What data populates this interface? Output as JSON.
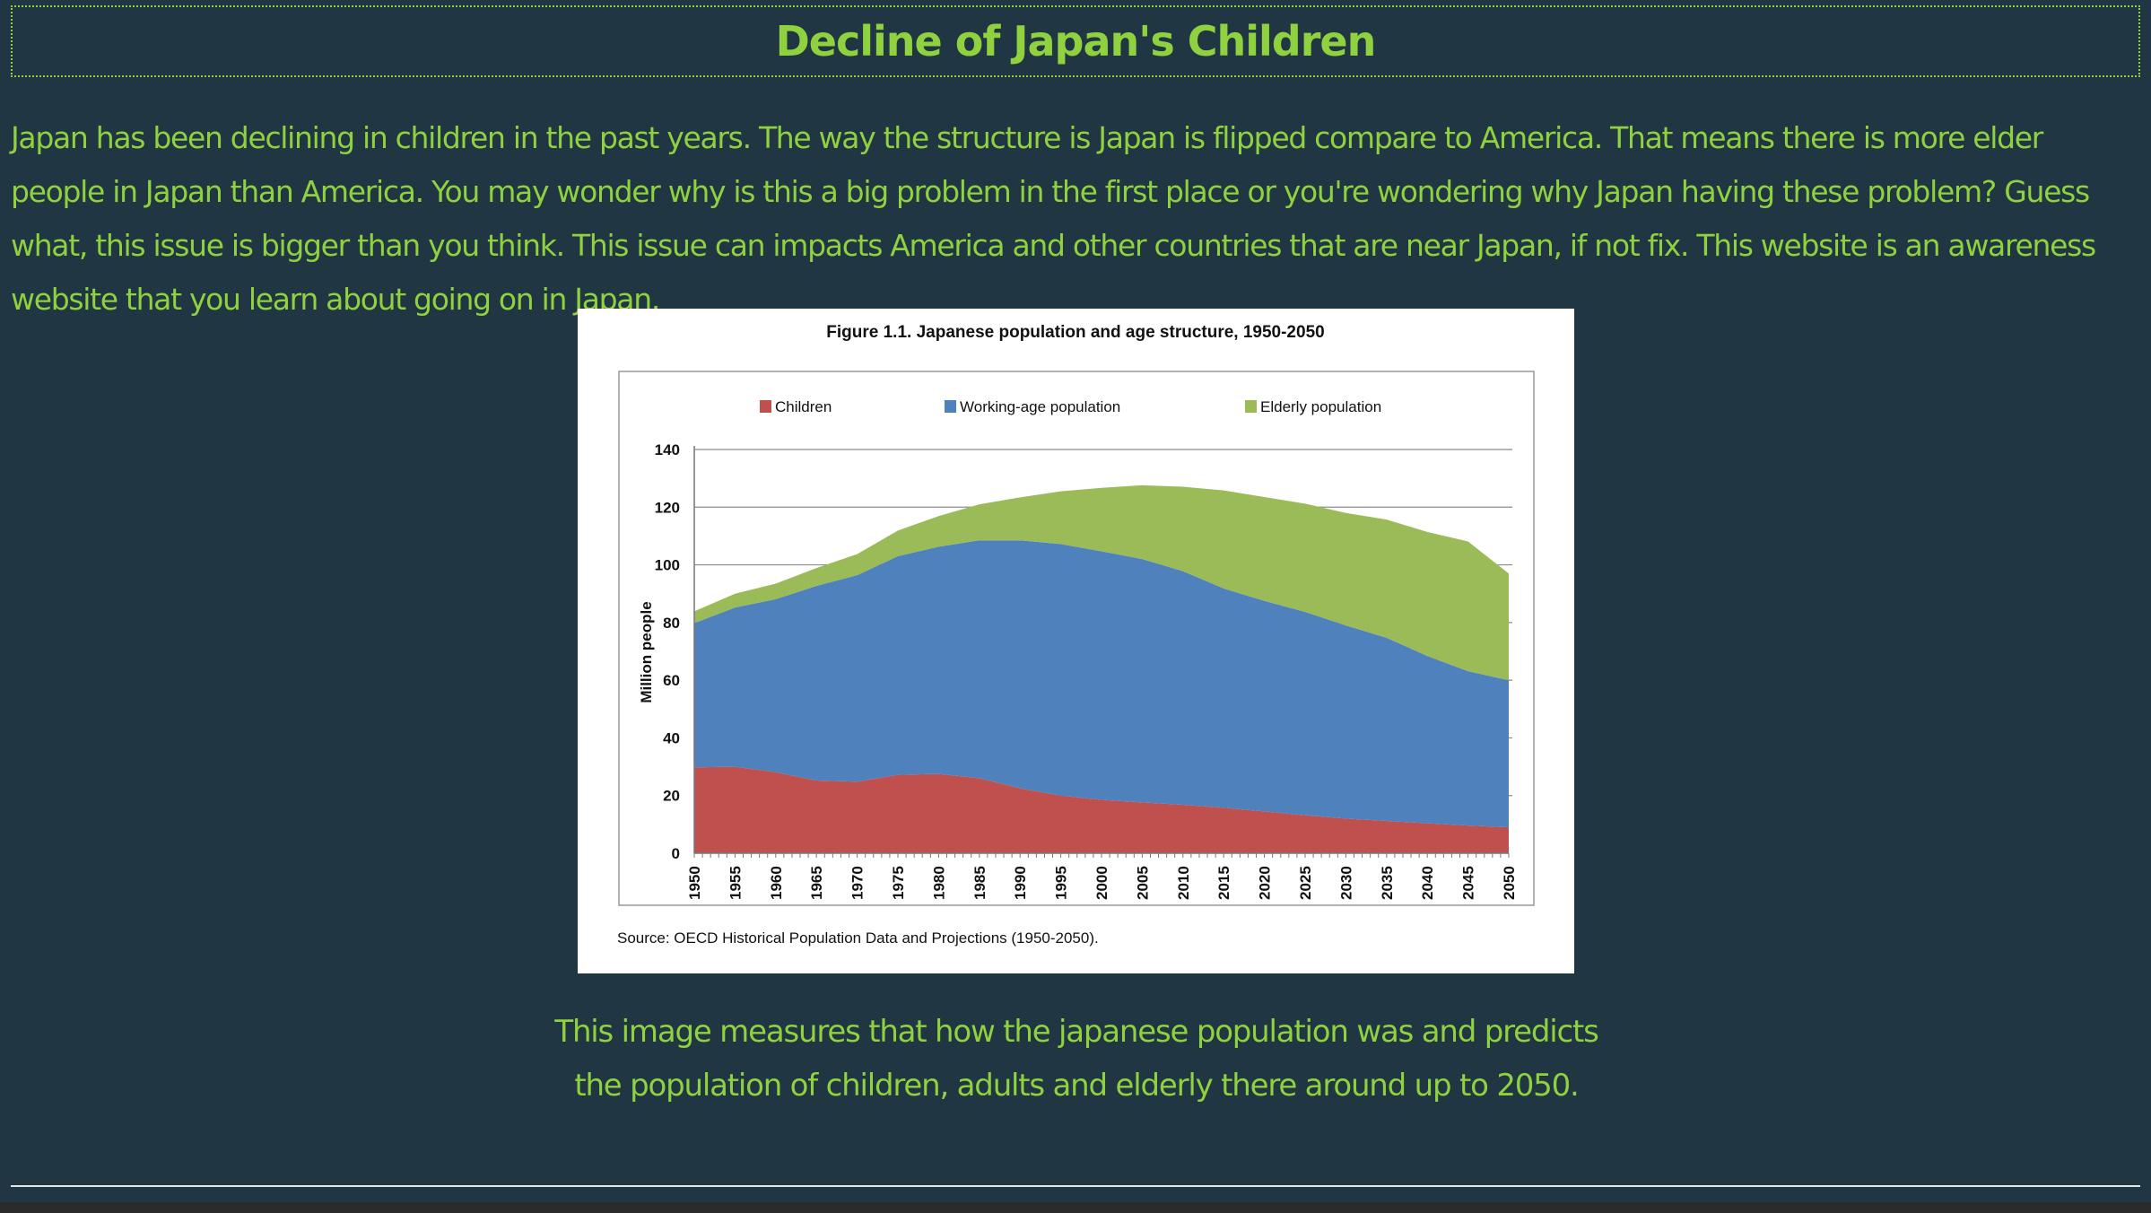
{
  "page": {
    "title": "Decline of Japan's Children",
    "intro": "Japan has been declining in children in the past years. The way the structure is Japan is flipped compare to America. That means there is more elder people in Japan than America. You may wonder why is this a big problem in the first place or you're wondering why Japan having these problem? Guess what, this issue is bigger than you think. This issue can impacts America and other countries that are near Japan, if not fix. This website is an awareness website that you learn about going on in Japan.",
    "caption_line1": "This image measures that how the japanese population was and predicts",
    "caption_line2": "the population of children, adults and elderly there around up to 2050.",
    "colors": {
      "background": "#203642",
      "accent": "#8fd13f"
    }
  },
  "chart_data": {
    "type": "area",
    "stacked": true,
    "title": "Figure 1.1. Japanese population and age structure, 1950-2050",
    "ylabel": "Million people",
    "xlabel": "",
    "source": "Source: OECD Historical Population Data and Projections (1950-2050).",
    "ylim": [
      0,
      140
    ],
    "yticks": [
      0,
      20,
      40,
      60,
      80,
      100,
      120,
      140
    ],
    "xlim": [
      1950,
      2050
    ],
    "xticks": [
      1950,
      1955,
      1960,
      1965,
      1970,
      1975,
      1980,
      1985,
      1990,
      1995,
      2000,
      2005,
      2010,
      2015,
      2020,
      2025,
      2030,
      2035,
      2040,
      2045,
      2050
    ],
    "grid": true,
    "legend_position": "top",
    "x": [
      1950,
      1955,
      1960,
      1965,
      1970,
      1975,
      1980,
      1985,
      1990,
      1995,
      2000,
      2005,
      2010,
      2015,
      2020,
      2025,
      2030,
      2035,
      2040,
      2045,
      2050
    ],
    "series": [
      {
        "name": "Children",
        "color": "#c0504d",
        "values": [
          29.8,
          30.0,
          28.1,
          25.2,
          24.8,
          27.2,
          27.5,
          26.0,
          22.5,
          20.0,
          18.5,
          17.6,
          16.8,
          15.8,
          14.5,
          13.2,
          12.0,
          11.2,
          10.4,
          9.6,
          9.0
        ]
      },
      {
        "name": "Working-age population",
        "color": "#4f81bd",
        "values": [
          50.0,
          55.2,
          60.0,
          67.5,
          71.6,
          75.8,
          78.8,
          82.5,
          86.0,
          87.2,
          86.2,
          84.4,
          81.0,
          76.0,
          73.0,
          70.5,
          67.0,
          63.5,
          58.0,
          53.5,
          51.0
        ]
      },
      {
        "name": "Elderly population",
        "color": "#9bbb59",
        "values": [
          4.1,
          4.8,
          5.4,
          6.2,
          7.3,
          8.9,
          10.6,
          12.5,
          14.9,
          18.3,
          22.0,
          25.6,
          29.3,
          34.0,
          36.0,
          37.5,
          39.0,
          41.0,
          43.0,
          45.0,
          37.0
        ]
      }
    ]
  }
}
